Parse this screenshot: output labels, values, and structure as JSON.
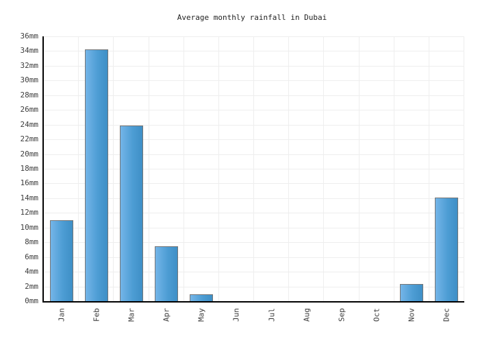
{
  "title": "Average monthly rainfall in Dubai",
  "chart_data": {
    "type": "bar",
    "title": "Average monthly rainfall in Dubai",
    "unit": "mm",
    "categories": [
      "Jan",
      "Feb",
      "Mar",
      "Apr",
      "May",
      "Jun",
      "Jul",
      "Aug",
      "Sep",
      "Oct",
      "Nov",
      "Dec"
    ],
    "values": [
      11,
      34.2,
      23.9,
      7.5,
      0.9,
      0,
      0,
      0,
      0,
      0,
      2.3,
      14.1
    ],
    "xlabel": "",
    "ylabel": "",
    "ylim": [
      0,
      36
    ],
    "ytick_step": 2,
    "ytick_labels": [
      "0mm",
      "2mm",
      "4mm",
      "6mm",
      "8mm",
      "10mm",
      "12mm",
      "14mm",
      "16mm",
      "18mm",
      "20mm",
      "22mm",
      "24mm",
      "26mm",
      "28mm",
      "30mm",
      "32mm",
      "34mm",
      "36mm"
    ],
    "grid": true,
    "legend_position": "none",
    "colors": {
      "bar_gradient_left": "#74b5e8",
      "bar_gradient_right": "#3e8fc6",
      "bar_border": "#757575",
      "grid_line": "#eeeeee",
      "axis_line": "#000000",
      "tick_text": "#3c3c3c",
      "title_text": "#1f1f1f",
      "background": "#ffffff"
    }
  }
}
